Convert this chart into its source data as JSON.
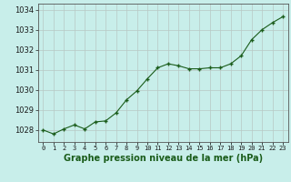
{
  "x": [
    0,
    1,
    2,
    3,
    4,
    5,
    6,
    7,
    8,
    9,
    10,
    11,
    12,
    13,
    14,
    15,
    16,
    17,
    18,
    19,
    20,
    21,
    22,
    23
  ],
  "y": [
    1028.0,
    1027.8,
    1028.05,
    1028.25,
    1028.05,
    1028.4,
    1028.45,
    1028.85,
    1029.5,
    1029.95,
    1030.55,
    1031.1,
    1031.3,
    1031.2,
    1031.05,
    1031.05,
    1031.1,
    1031.1,
    1031.3,
    1031.7,
    1032.5,
    1033.0,
    1033.35,
    1033.65
  ],
  "line_color": "#1a5c1a",
  "marker_color": "#1a5c1a",
  "bg_color": "#c8eeea",
  "grid_color": "#b8c8c4",
  "xlabel": "Graphe pression niveau de la mer (hPa)",
  "xlabel_color": "#1a5c1a",
  "ylabel_ticks": [
    1028,
    1029,
    1030,
    1031,
    1032,
    1033,
    1034
  ],
  "xtick_labels": [
    "0",
    "1",
    "2",
    "3",
    "4",
    "5",
    "6",
    "7",
    "8",
    "9",
    "10",
    "11",
    "12",
    "13",
    "14",
    "15",
    "16",
    "17",
    "18",
    "19",
    "20",
    "21",
    "22",
    "23"
  ],
  "ylim": [
    1027.4,
    1034.3
  ],
  "xlim": [
    -0.5,
    23.5
  ]
}
